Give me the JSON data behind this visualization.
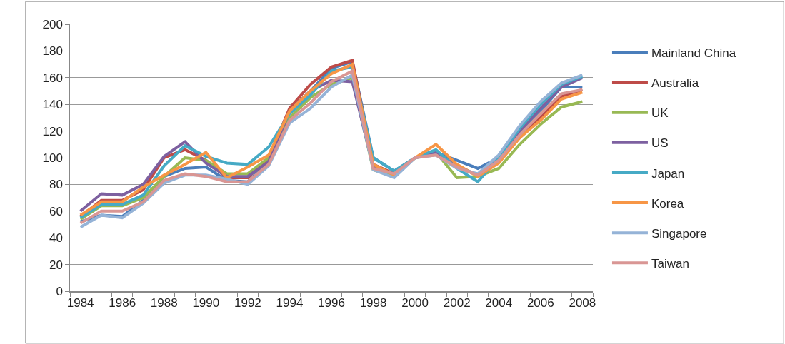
{
  "chart_data": {
    "type": "line",
    "categories": [
      "1984",
      null,
      "1986",
      null,
      "1988",
      null,
      "1990",
      null,
      "1992",
      null,
      "1994",
      null,
      "1996",
      null,
      "1998",
      null,
      "2000",
      null,
      "2002",
      null,
      "2004",
      null,
      "2006",
      null,
      "2008"
    ],
    "ylim": [
      0,
      200
    ],
    "yticks": [
      0,
      20,
      40,
      60,
      80,
      100,
      120,
      140,
      160,
      180,
      200
    ],
    "grid": "y",
    "legend": "right",
    "marker": "none",
    "line_style": "solid",
    "series": [
      {
        "name": "Mainland China",
        "color": "#4a7ebb",
        "values": [
          52,
          57,
          56,
          68,
          86,
          92,
          93,
          83,
          82,
          97,
          135,
          150,
          167,
          172,
          100,
          90,
          100,
          104,
          98,
          92,
          100,
          118,
          135,
          153,
          153
        ]
      },
      {
        "name": "Australia",
        "color": "#be4b48",
        "values": [
          56,
          68,
          68,
          76,
          100,
          106,
          98,
          85,
          85,
          100,
          137,
          155,
          168,
          173,
          95,
          88,
          100,
          103,
          93,
          87,
          97,
          115,
          130,
          146,
          151
        ]
      },
      {
        "name": "UK",
        "color": "#98b954",
        "values": [
          54,
          64,
          64,
          70,
          86,
          100,
          98,
          88,
          88,
          100,
          130,
          145,
          155,
          160,
          91,
          86,
          100,
          104,
          85,
          86,
          92,
          110,
          125,
          138,
          142
        ]
      },
      {
        "name": "US",
        "color": "#7d60a0",
        "values": [
          60,
          73,
          72,
          80,
          101,
          112,
          96,
          86,
          86,
          97,
          135,
          150,
          158,
          157,
          93,
          88,
          100,
          104,
          94,
          87,
          100,
          120,
          137,
          153,
          160
        ]
      },
      {
        "name": "Japan",
        "color": "#46aac5",
        "values": [
          55,
          65,
          65,
          72,
          94,
          109,
          101,
          96,
          95,
          108,
          133,
          147,
          165,
          168,
          100,
          90,
          100,
          106,
          92,
          82,
          100,
          122,
          140,
          155,
          161
        ]
      },
      {
        "name": "Korea",
        "color": "#f79646",
        "values": [
          57,
          67,
          67,
          78,
          87,
          95,
          104,
          85,
          93,
          102,
          135,
          150,
          163,
          170,
          95,
          87,
          100,
          110,
          95,
          86,
          96,
          115,
          128,
          144,
          149
        ]
      },
      {
        "name": "Singapore",
        "color": "#95b3d7",
        "values": [
          48,
          57,
          55,
          66,
          81,
          87,
          87,
          84,
          80,
          94,
          126,
          137,
          153,
          162,
          91,
          85,
          100,
          102,
          92,
          88,
          102,
          124,
          142,
          156,
          162
        ]
      },
      {
        "name": "Taiwan",
        "color": "#d99694",
        "values": [
          51,
          60,
          60,
          67,
          83,
          88,
          86,
          82,
          82,
          95,
          128,
          141,
          157,
          165,
          92,
          88,
          100,
          102,
          93,
          87,
          98,
          117,
          133,
          148,
          151
        ]
      }
    ]
  }
}
